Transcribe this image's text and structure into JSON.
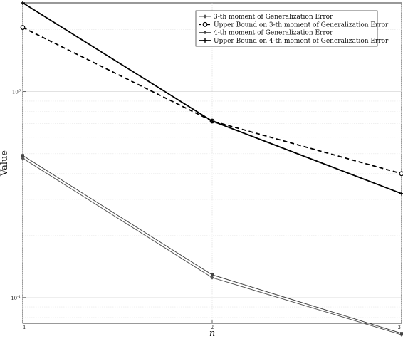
{
  "chart_data": {
    "type": "line",
    "title": "",
    "xlabel": "n",
    "ylabel": "Value",
    "x": [
      1,
      2,
      3
    ],
    "xticks": [
      "1",
      "2",
      "3"
    ],
    "yscale": "log",
    "ylim": [
      0.075,
      2.7
    ],
    "yticks": [
      {
        "value": 0.1,
        "base": "10",
        "exp": "-1"
      },
      {
        "value": 1,
        "base": "10",
        "exp": "0"
      }
    ],
    "grid": true,
    "legend_position": "top-right",
    "series": [
      {
        "name": "3-th moment of Generalization Error",
        "values": [
          0.475,
          0.125,
          0.066
        ],
        "color": "#555555",
        "linestyle": "solid",
        "marker": "diamond"
      },
      {
        "name": "Upper Bound on 3-th moment of Generalization Error",
        "values": [
          2.05,
          0.72,
          0.4
        ],
        "color": "#000000",
        "linestyle": "dashed",
        "marker": "circle"
      },
      {
        "name": "4-th moment of Generalization Error",
        "values": [
          0.49,
          0.129,
          0.067
        ],
        "color": "#444444",
        "linestyle": "solid",
        "marker": "square"
      },
      {
        "name": "Upper Bound on 4-th moment of Generalization Error",
        "values": [
          2.7,
          0.72,
          0.32
        ],
        "color": "#000000",
        "linestyle": "solid",
        "marker": "plus"
      }
    ]
  }
}
